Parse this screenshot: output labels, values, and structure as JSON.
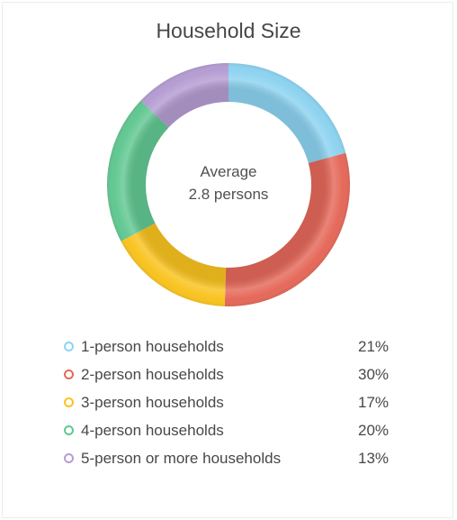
{
  "chart_data": {
    "type": "pie",
    "title": "Household Size",
    "center_text": [
      "Average",
      "2.8 persons"
    ],
    "legend_position": "bottom",
    "categories": [
      "1-person households",
      "2-person households",
      "3-person households",
      "4-person households",
      "5-person or more households"
    ],
    "values": [
      21,
      30,
      17,
      20,
      13
    ],
    "value_labels": [
      "21%",
      "30%",
      "17%",
      "20%",
      "13%"
    ],
    "colors": [
      "#8dd3f0",
      "#e5695a",
      "#f9c31f",
      "#62c892",
      "#b59dd2"
    ]
  }
}
